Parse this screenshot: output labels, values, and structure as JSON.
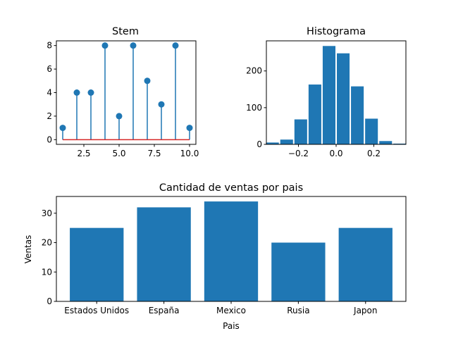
{
  "colors": {
    "series": "#1f77b4",
    "baseline": "#d62728",
    "axis": "#000000"
  },
  "chart_data": [
    {
      "type": "stem",
      "title": "Stem",
      "x": [
        1,
        2,
        3,
        4,
        5,
        6,
        7,
        8,
        9,
        10
      ],
      "values": [
        1,
        4,
        4,
        8,
        2,
        8,
        5,
        3,
        8,
        1
      ],
      "baseline": 0,
      "xlim": [
        0.55,
        10.45
      ],
      "ylim": [
        -0.4,
        8.4
      ],
      "xticks": [
        2.5,
        5.0,
        7.5,
        10.0
      ],
      "xtick_labels": [
        "2.5",
        "5.0",
        "7.5",
        "10.0"
      ],
      "yticks": [
        0,
        2,
        4,
        6,
        8
      ],
      "ytick_labels": [
        "0",
        "2",
        "4",
        "6",
        "8"
      ]
    },
    {
      "type": "histogram",
      "title": "Histograma",
      "bins": [
        -0.3375,
        -0.2625,
        -0.1875,
        -0.1125,
        -0.0375,
        0.0375,
        0.1125,
        0.1875,
        0.2625,
        0.3375
      ],
      "counts": [
        5,
        13,
        68,
        163,
        268,
        248,
        158,
        70,
        9,
        2
      ],
      "xlim": [
        -0.37,
        0.37
      ],
      "ylim": [
        0,
        282
      ],
      "xticks": [
        -0.2,
        0.0,
        0.2
      ],
      "xtick_labels": [
        "−0.2",
        "0.0",
        "0.2"
      ],
      "yticks": [
        0,
        100,
        200
      ],
      "ytick_labels": [
        "0",
        "100",
        "200"
      ]
    },
    {
      "type": "bar",
      "title": "Cantidad de ventas por pais",
      "categories": [
        "Estados Unidos",
        "España",
        "Mexico",
        "Rusia",
        "Japon"
      ],
      "values": [
        25,
        32,
        34,
        20,
        25
      ],
      "xlabel": "Pais",
      "ylabel": "Ventas",
      "ylim": [
        0,
        35.7
      ],
      "yticks": [
        0,
        10,
        20,
        30
      ],
      "ytick_labels": [
        "0",
        "10",
        "20",
        "30"
      ]
    }
  ]
}
